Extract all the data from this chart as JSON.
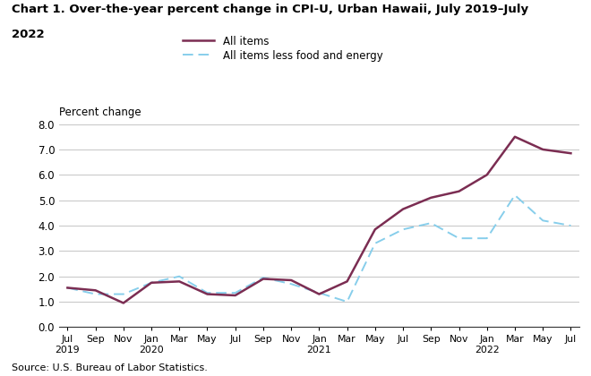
{
  "title_line1": "Chart 1. Over-the-year percent change in CPI-U, Urban Hawaii, July 2019–July",
  "title_line2": "2022",
  "ylabel": "Percent change",
  "source": "Source: U.S. Bureau of Labor Statistics.",
  "ylim": [
    0.0,
    8.0
  ],
  "yticks": [
    0.0,
    1.0,
    2.0,
    3.0,
    4.0,
    5.0,
    6.0,
    7.0,
    8.0
  ],
  "tick_labels": [
    "Jul\n2019",
    "Sep",
    "Nov",
    "Jan\n2020",
    "Mar",
    "May",
    "Jul",
    "Sep",
    "Nov",
    "Jan\n2021",
    "Mar",
    "May",
    "Jul",
    "Sep",
    "Nov",
    "Jan\n2022",
    "Mar",
    "May",
    "Jul"
  ],
  "all_items": [
    1.55,
    1.45,
    0.95,
    1.75,
    1.8,
    1.3,
    1.25,
    1.9,
    1.85,
    1.3,
    1.8,
    3.85,
    4.65,
    5.1,
    5.35,
    6.0,
    7.5,
    7.0,
    6.85
  ],
  "all_items_less": [
    1.55,
    1.3,
    1.3,
    1.75,
    2.0,
    1.35,
    1.35,
    1.95,
    1.7,
    1.35,
    1.0,
    3.3,
    3.85,
    4.1,
    3.5,
    3.5,
    5.2,
    4.2,
    4.0
  ],
  "all_items_color": "#7b2d52",
  "all_items_less_color": "#87ceeb",
  "all_items_linewidth": 1.8,
  "all_items_less_linewidth": 1.4,
  "background_color": "#ffffff",
  "grid_color": "#bbbbbb",
  "legend_all_items": "All items",
  "legend_all_items_less": "All items less food and energy"
}
